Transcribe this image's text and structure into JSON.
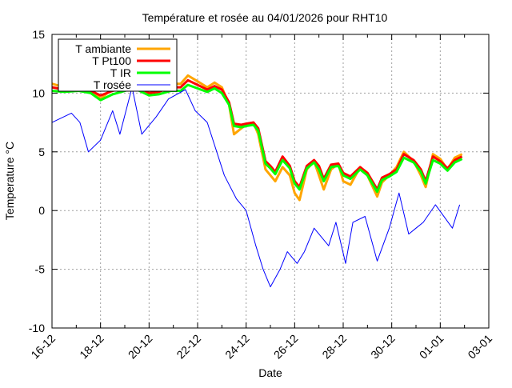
{
  "chart_data": {
    "type": "line",
    "title": "Température et rosée au 04/01/2026 pour RHT10",
    "xlabel": "Date",
    "ylabel": "Temperature °C",
    "x_unit": "days since 16-12",
    "xlim": [
      0,
      18
    ],
    "ylim": [
      -10,
      15
    ],
    "grid": true,
    "legend_placement": "top-left",
    "x_ticks": [
      {
        "value": 0,
        "label": "16-12"
      },
      {
        "value": 2,
        "label": "18-12"
      },
      {
        "value": 4,
        "label": "20-12"
      },
      {
        "value": 6,
        "label": "22-12"
      },
      {
        "value": 8,
        "label": "24-12"
      },
      {
        "value": 10,
        "label": "26-12"
      },
      {
        "value": 12,
        "label": "28-12"
      },
      {
        "value": 14,
        "label": "30-12"
      },
      {
        "value": 16,
        "label": "01-01"
      },
      {
        "value": 18,
        "label": "03-01"
      }
    ],
    "y_ticks": [
      {
        "value": 15,
        "label": "15"
      },
      {
        "value": 10,
        "label": "10"
      },
      {
        "value": 5,
        "label": "5"
      },
      {
        "value": 0,
        "label": "0"
      },
      {
        "value": -5,
        "label": "-5"
      },
      {
        "value": -10,
        "label": "-10"
      }
    ],
    "series": [
      {
        "name": "T ambiante",
        "color": "#ffa500",
        "width": 3,
        "x": [
          0,
          0.5,
          1.1,
          1.6,
          2.0,
          2.5,
          3.0,
          3.4,
          4.0,
          4.4,
          4.9,
          5.3,
          5.6,
          6.0,
          6.4,
          6.7,
          7.0,
          7.3,
          7.5,
          7.8,
          8.0,
          8.3,
          8.5,
          8.8,
          9.0,
          9.2,
          9.5,
          9.8,
          10.0,
          10.2,
          10.5,
          10.8,
          11.0,
          11.2,
          11.5,
          11.8,
          12.0,
          12.3,
          12.7,
          13.0,
          13.4,
          13.6,
          13.9,
          14.2,
          14.5,
          14.9,
          15.2,
          15.4,
          15.7,
          16.0,
          16.3,
          16.6,
          16.9
        ],
        "y": [
          10.8,
          10.5,
          10.6,
          10.4,
          9.5,
          10.4,
          10.8,
          11,
          10.2,
          10.3,
          10.8,
          10.8,
          11.5,
          11,
          10.5,
          10.9,
          10.5,
          9,
          6.5,
          7,
          7.3,
          7.5,
          6.5,
          3.5,
          3,
          2.5,
          3.7,
          3,
          1.5,
          0.9,
          3.5,
          4.2,
          3,
          1.8,
          3.5,
          4,
          2.5,
          2.2,
          3.7,
          3,
          1.2,
          2.4,
          3,
          3.7,
          5,
          4.2,
          3,
          2,
          4.8,
          4.4,
          3.5,
          4.5,
          4.8
        ]
      },
      {
        "name": "T Pt100",
        "color": "#ff0000",
        "width": 3,
        "x": [
          0,
          0.5,
          1.1,
          1.6,
          2.0,
          2.5,
          3.0,
          3.4,
          4.0,
          4.4,
          4.9,
          5.3,
          5.6,
          6.0,
          6.4,
          6.7,
          7.0,
          7.3,
          7.5,
          7.8,
          8.0,
          8.3,
          8.5,
          8.8,
          9.0,
          9.2,
          9.5,
          9.8,
          10.0,
          10.2,
          10.5,
          10.8,
          11.0,
          11.2,
          11.5,
          11.8,
          12.0,
          12.3,
          12.7,
          13.0,
          13.4,
          13.6,
          13.9,
          14.2,
          14.5,
          14.9,
          15.2,
          15.4,
          15.7,
          16.0,
          16.3,
          16.6,
          16.9
        ],
        "y": [
          10.5,
          10.3,
          10.4,
          10.2,
          9.8,
          10.2,
          10.5,
          10.7,
          10,
          10.1,
          10.5,
          10.5,
          11.1,
          10.7,
          10.3,
          10.6,
          10.3,
          9.2,
          7.4,
          7.3,
          7.4,
          7.5,
          7,
          4.2,
          3.8,
          3.3,
          4.6,
          3.8,
          2.5,
          2.0,
          3.8,
          4.3,
          3.8,
          2.7,
          3.9,
          4,
          3.2,
          2.9,
          3.7,
          3.2,
          1.8,
          2.8,
          3.1,
          3.5,
          4.8,
          4.3,
          3.5,
          2.5,
          4.6,
          4.2,
          3.6,
          4.3,
          4.6
        ]
      },
      {
        "name": "T IR",
        "color": "#00ff00",
        "width": 3,
        "x": [
          0,
          0.5,
          1.1,
          1.6,
          2.0,
          2.5,
          3.0,
          3.4,
          4.0,
          4.4,
          4.9,
          5.3,
          5.6,
          6.0,
          6.4,
          6.7,
          7.0,
          7.3,
          7.5,
          7.8,
          8.0,
          8.3,
          8.5,
          8.8,
          9.0,
          9.2,
          9.5,
          9.8,
          10.0,
          10.2,
          10.5,
          10.8,
          11.0,
          11.2,
          11.5,
          11.8,
          12.0,
          12.3,
          12.7,
          13.0,
          13.4,
          13.6,
          13.9,
          14.2,
          14.5,
          14.9,
          15.2,
          15.4,
          15.7,
          16.0,
          16.3,
          16.6,
          16.9
        ],
        "y": [
          10.2,
          10.1,
          10.2,
          10,
          9.4,
          9.9,
          10.2,
          10.4,
          9.8,
          9.9,
          10.2,
          10.2,
          10.7,
          10.4,
          10.1,
          10.4,
          10,
          9,
          7.2,
          7.1,
          7.2,
          7.3,
          6.8,
          4,
          3.6,
          3.1,
          4.3,
          3.6,
          2.3,
          1.8,
          3.6,
          4.1,
          3.5,
          2.5,
          3.7,
          3.8,
          3,
          2.7,
          3.5,
          3,
          1.6,
          2.6,
          2.9,
          3.3,
          4.5,
          4.1,
          3.3,
          2.3,
          4.3,
          4,
          3.4,
          4.1,
          4.4
        ]
      },
      {
        "name": "T rosée",
        "color": "#0000ff",
        "width": 1,
        "x": [
          0,
          0.8,
          1.15,
          1.5,
          2.0,
          2.5,
          2.8,
          3.3,
          3.7,
          4.3,
          4.8,
          5.5,
          5.9,
          6.4,
          7.1,
          7.6,
          8.0,
          8.4,
          8.7,
          9.0,
          9.4,
          9.7,
          10.1,
          10.4,
          10.8,
          11.4,
          11.7,
          12.1,
          12.4,
          12.9,
          13.4,
          13.9,
          14.3,
          14.7,
          15.0,
          15.3,
          15.8,
          16.5,
          16.8
        ],
        "y": [
          7.5,
          8.3,
          7.5,
          5,
          6,
          8.5,
          6.5,
          10.5,
          6.5,
          8,
          9.5,
          10.3,
          8.5,
          7.5,
          3,
          1,
          0,
          -3,
          -5,
          -6.5,
          -5,
          -3.5,
          -4.5,
          -3.5,
          -1.5,
          -3,
          -1,
          -4.5,
          -1,
          -0.5,
          -4.3,
          -1.5,
          1.5,
          -2,
          -1.5,
          -1,
          0.5,
          -1.5,
          0.5
        ]
      }
    ]
  }
}
